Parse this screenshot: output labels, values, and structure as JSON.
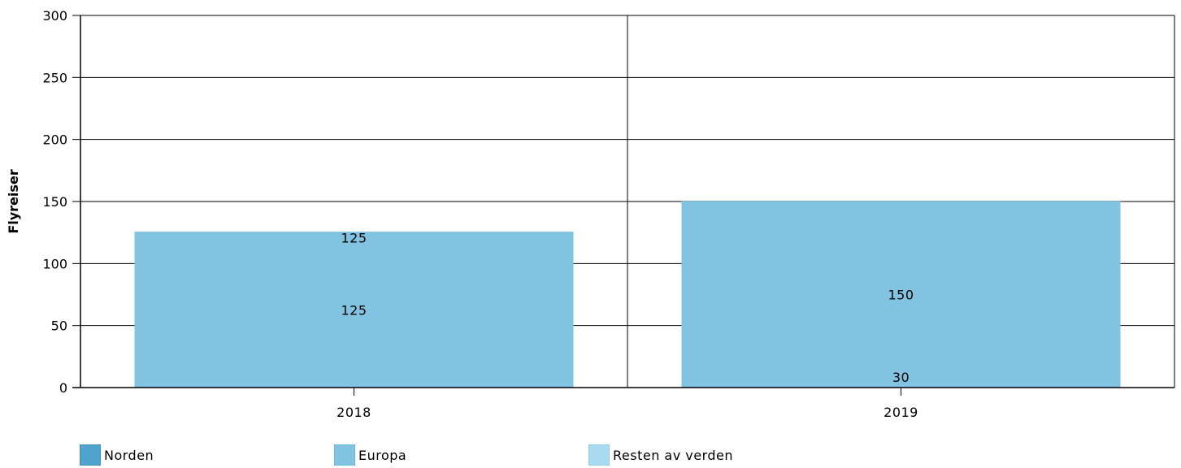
{
  "chart_data": {
    "type": "bar",
    "stacked": true,
    "categories": [
      "2018",
      "2019"
    ],
    "series": [
      {
        "name": "Norden",
        "values": [
          125,
          30
        ],
        "color": "#4fa3cc",
        "labels": [
          "125",
          "30"
        ]
      },
      {
        "name": "Europa",
        "values": [
          125,
          150
        ],
        "color": "#82c3e1",
        "labels": [
          "125",
          "150"
        ]
      },
      {
        "name": "Resten av verden",
        "values": [
          0,
          0
        ],
        "color": "#a9daf2",
        "labels": [
          "",
          ""
        ]
      }
    ],
    "ylabel": "Flyreiser",
    "xlabel": "",
    "ylim": [
      0,
      300
    ],
    "yticks": [
      "0",
      "50",
      "100",
      "150",
      "200",
      "250",
      "300"
    ],
    "grid": true,
    "legend_position": "bottom"
  },
  "legend": {
    "items": [
      {
        "label": "Norden",
        "color": "#4fa3cc",
        "border": "#3f8fbb"
      },
      {
        "label": "Europa",
        "color": "#82c3e1",
        "border": "#6fb3d6"
      },
      {
        "label": "Resten av verden",
        "color": "#a9daf2",
        "border": "#95cbe6"
      }
    ]
  }
}
